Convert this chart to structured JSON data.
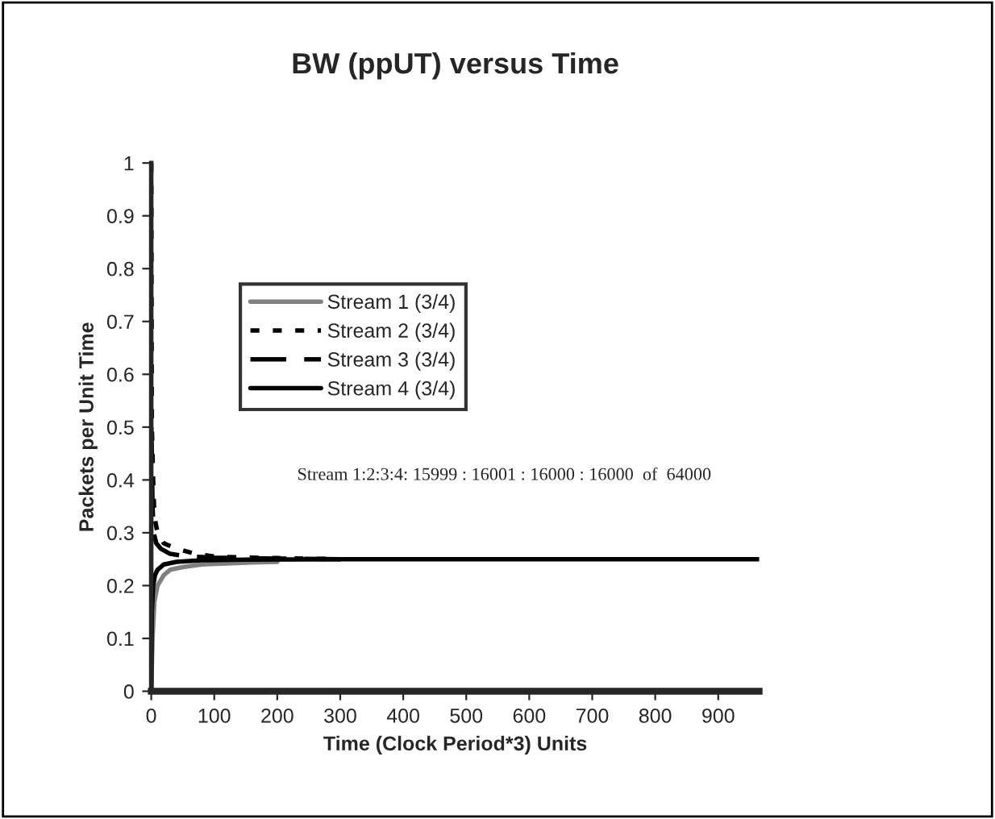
{
  "chart_data": {
    "type": "line",
    "title": "BW (ppUT) versus Time",
    "xlabel": "Time (Clock Period*3) Units",
    "ylabel": "Packets per Unit Time",
    "xlim": [
      0,
      965
    ],
    "xticks": [
      0,
      100,
      200,
      300,
      400,
      500,
      600,
      700,
      800,
      900
    ],
    "ylim": [
      0,
      1
    ],
    "yticks": [
      0,
      0.1,
      0.2,
      0.3,
      0.4,
      0.5,
      0.6,
      0.7,
      0.8,
      0.9,
      1
    ],
    "grid": false,
    "legend": "top left",
    "marker": "none",
    "annotations": [
      "Stream 1:2:3:4: 15999 : 16001 : 16000 : 16000  of  64000"
    ],
    "series": [
      {
        "name": "Stream 1 (3/4)",
        "color": "#808080",
        "line_style": "solid",
        "x": [
          0,
          2,
          5,
          10,
          20,
          30,
          50,
          80,
          120,
          160,
          200
        ],
        "values": [
          0,
          0.1,
          0.17,
          0.2,
          0.22,
          0.23,
          0.235,
          0.24,
          0.242,
          0.244,
          0.245
        ]
      },
      {
        "name": "Stream 2 (3/4)",
        "color": "#000000",
        "line_style": "dotted",
        "x": [
          0,
          1,
          3,
          5,
          10,
          20,
          40,
          70,
          100,
          150,
          200,
          300
        ],
        "values": [
          1,
          0.5,
          0.4,
          0.33,
          0.3,
          0.28,
          0.27,
          0.26,
          0.255,
          0.253,
          0.252,
          0.25
        ]
      },
      {
        "name": "Stream 3 (3/4)",
        "color": "#000000",
        "line_style": "dashed",
        "x": [
          0,
          1,
          2,
          4,
          8,
          15,
          30,
          60,
          100,
          200,
          300
        ],
        "values": [
          0.5,
          0.45,
          0.35,
          0.3,
          0.28,
          0.27,
          0.26,
          0.255,
          0.253,
          0.251,
          0.25
        ]
      },
      {
        "name": "Stream 4 (3/4)",
        "color": "#000000",
        "line_style": "solid",
        "x": [
          0,
          1,
          3,
          6,
          10,
          20,
          40,
          80,
          150,
          300,
          965
        ],
        "values": [
          0,
          0.15,
          0.2,
          0.22,
          0.23,
          0.24,
          0.245,
          0.248,
          0.249,
          0.25,
          0.25
        ]
      }
    ]
  }
}
